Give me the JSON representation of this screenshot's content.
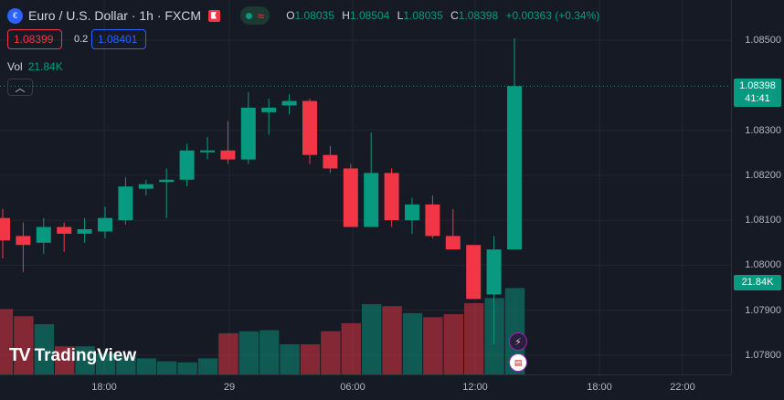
{
  "header": {
    "title": "Euro / U.S. Dollar · 1h · FXCM",
    "ohlc": {
      "o_label": "O",
      "o": "1.08035",
      "h_label": "H",
      "h": "1.08504",
      "l_label": "L",
      "l": "1.08035",
      "c_label": "C",
      "c": "1.08398",
      "change": "+0.00363 (+0.34%)"
    }
  },
  "trade": {
    "sell": "1.08399",
    "spread": "0.2",
    "buy": "1.08401"
  },
  "volume": {
    "label": "Vol",
    "value": "21.84K"
  },
  "price_axis": {
    "ticks": [
      "1.08500",
      "1.08398",
      "1.08300",
      "1.08200",
      "1.08100",
      "1.08000",
      "1.07900",
      "1.07800"
    ],
    "tick_values": [
      1.085,
      1.083,
      1.082,
      1.081,
      1.08,
      1.079,
      1.078
    ],
    "tick_labels": [
      "1.08500",
      "1.08300",
      "1.08200",
      "1.08100",
      "1.08000",
      "1.07900",
      "1.07800"
    ],
    "current_price": "1.08398",
    "countdown": "41:41",
    "volume_tag": "21.84K"
  },
  "time_axis": {
    "labels": [
      "18:00",
      "29",
      "06:00",
      "12:00",
      "18:00",
      "22:00"
    ]
  },
  "logo": {
    "text": "TradingView"
  },
  "colors": {
    "up": "#089981",
    "down": "#f23645",
    "bg": "#161a25",
    "grid": "#232632"
  },
  "chart_data": {
    "type": "candlestick",
    "ylim": [
      1.0776,
      1.0858
    ],
    "candles": [
      {
        "o": 1.08105,
        "h": 1.08125,
        "l": 1.08015,
        "c": 1.08055
      },
      {
        "o": 1.08065,
        "h": 1.08095,
        "l": 1.07985,
        "c": 1.08045
      },
      {
        "o": 1.0805,
        "h": 1.08105,
        "l": 1.08025,
        "c": 1.08085
      },
      {
        "o": 1.08085,
        "h": 1.08095,
        "l": 1.0803,
        "c": 1.0807
      },
      {
        "o": 1.0807,
        "h": 1.08105,
        "l": 1.0805,
        "c": 1.0808
      },
      {
        "o": 1.08075,
        "h": 1.0813,
        "l": 1.0806,
        "c": 1.08105
      },
      {
        "o": 1.081,
        "h": 1.08195,
        "l": 1.0809,
        "c": 1.08175
      },
      {
        "o": 1.0817,
        "h": 1.0819,
        "l": 1.08155,
        "c": 1.0818
      },
      {
        "o": 1.08185,
        "h": 1.08215,
        "l": 1.08105,
        "c": 1.0819
      },
      {
        "o": 1.0819,
        "h": 1.0827,
        "l": 1.08175,
        "c": 1.08255
      },
      {
        "o": 1.08255,
        "h": 1.08285,
        "l": 1.08235,
        "c": 1.08255
      },
      {
        "o": 1.08255,
        "h": 1.0832,
        "l": 1.08225,
        "c": 1.08235
      },
      {
        "o": 1.08235,
        "h": 1.08385,
        "l": 1.08225,
        "c": 1.0835
      },
      {
        "o": 1.0834,
        "h": 1.0837,
        "l": 1.0829,
        "c": 1.0835
      },
      {
        "o": 1.08355,
        "h": 1.0838,
        "l": 1.08335,
        "c": 1.08365
      },
      {
        "o": 1.08365,
        "h": 1.0837,
        "l": 1.08225,
        "c": 1.08245
      },
      {
        "o": 1.08245,
        "h": 1.08265,
        "l": 1.08205,
        "c": 1.08215
      },
      {
        "o": 1.08215,
        "h": 1.08225,
        "l": 1.08085,
        "c": 1.08085
      },
      {
        "o": 1.08085,
        "h": 1.08295,
        "l": 1.08085,
        "c": 1.08205
      },
      {
        "o": 1.08205,
        "h": 1.08215,
        "l": 1.08085,
        "c": 1.081
      },
      {
        "o": 1.081,
        "h": 1.0815,
        "l": 1.0807,
        "c": 1.08135
      },
      {
        "o": 1.08135,
        "h": 1.08155,
        "l": 1.0806,
        "c": 1.08065
      },
      {
        "o": 1.08065,
        "h": 1.08125,
        "l": 1.08035,
        "c": 1.08035
      },
      {
        "o": 1.08045,
        "h": 1.08045,
        "l": 1.07925,
        "c": 1.07925
      },
      {
        "o": 1.07935,
        "h": 1.08065,
        "l": 1.07825,
        "c": 1.08035
      },
      {
        "o": 1.08035,
        "h": 1.08504,
        "l": 1.08035,
        "c": 1.08398
      }
    ],
    "volumes": [
      6.5,
      5.8,
      5.0,
      2.8,
      2.8,
      2.1,
      1.8,
      1.6,
      1.3,
      1.2,
      1.6,
      4.1,
      4.3,
      4.4,
      3.0,
      3.0,
      4.3,
      5.1,
      7.0,
      6.8,
      6.1,
      5.7,
      6.0,
      7.1,
      7.6,
      8.6
    ],
    "volume_ylim": [
      0,
      10
    ]
  }
}
